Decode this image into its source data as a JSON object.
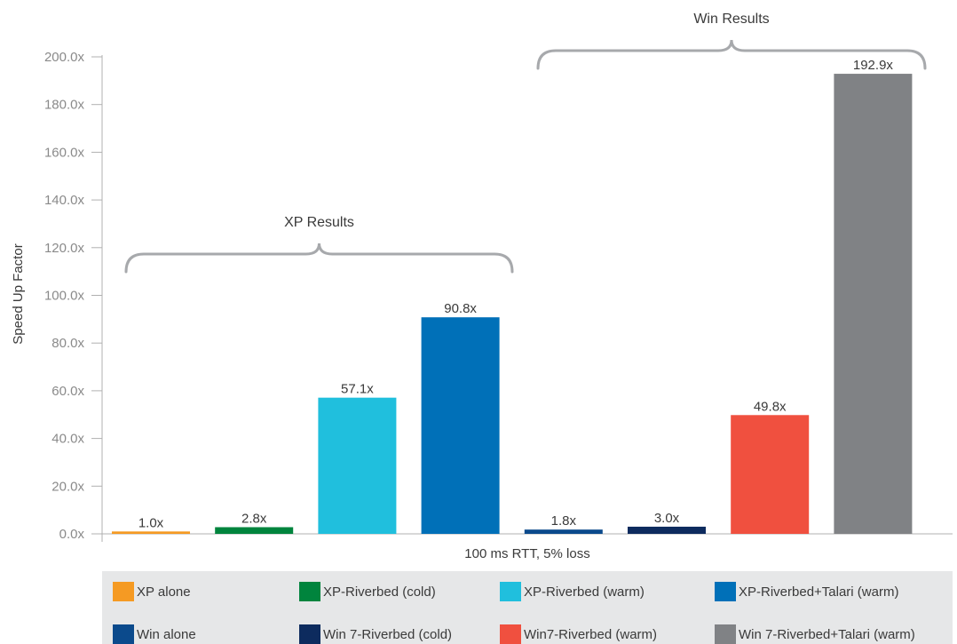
{
  "chart_data": {
    "type": "bar",
    "categories": [
      "XP alone",
      "XP-Riverbed (cold)",
      "XP-Riverbed (warm)",
      "XP-Riverbed+Talari (warm)",
      "Win alone",
      "Win 7-Riverbed (cold)",
      "Win7-Riverbed (warm)",
      "Win 7-Riverbed+Talari (warm)"
    ],
    "values": [
      1.0,
      2.8,
      57.1,
      90.8,
      1.8,
      3.0,
      49.8,
      192.9
    ],
    "value_labels": [
      "1.0x",
      "2.8x",
      "57.1x",
      "90.8x",
      "1.8x",
      "3.0x",
      "49.8x",
      "192.9x"
    ],
    "colors": [
      "#f59a23",
      "#00843d",
      "#20bfdd",
      "#0070b8",
      "#0b4a8c",
      "#0d2b5e",
      "#f0503f",
      "#808285"
    ],
    "xlabel": "100 ms RTT, 5% loss",
    "ylabel": "Speed Up Factor",
    "ylim": [
      0,
      200
    ],
    "y_ticks": [
      "0.0x",
      "20.0x",
      "40.0x",
      "60.0x",
      "80.0x",
      "100.0x",
      "120.0x",
      "140.0x",
      "160.0x",
      "180.0x",
      "200.0x"
    ],
    "grid": false,
    "legend_position": "bottom",
    "annotations": [
      {
        "text": "XP Results",
        "spans": [
          "XP alone",
          "XP-Riverbed+Talari (warm)"
        ]
      },
      {
        "text": "Win Results",
        "spans": [
          "Win alone",
          "Win 7-Riverbed+Talari (warm)"
        ]
      }
    ]
  }
}
